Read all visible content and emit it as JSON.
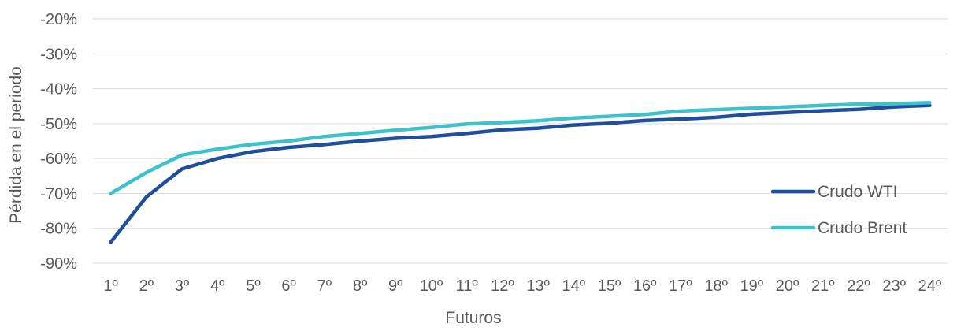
{
  "chart_data": {
    "type": "line",
    "categories": [
      "1º",
      "2º",
      "3º",
      "4º",
      "5º",
      "6º",
      "7º",
      "8º",
      "9º",
      "10º",
      "11º",
      "12º",
      "13º",
      "14º",
      "15º",
      "16º",
      "17º",
      "18º",
      "19º",
      "20º",
      "21º",
      "22º",
      "23º",
      "24º"
    ],
    "series": [
      {
        "name": "Crudo WTI",
        "color": "#1f4e9c",
        "values": [
          -84,
          -71,
          -63,
          -60,
          -58,
          -56.8,
          -56,
          -55,
          -54.2,
          -53.7,
          -52.8,
          -51.8,
          -51.3,
          -50.4,
          -49.9,
          -49.1,
          -48.7,
          -48.2,
          -47.3,
          -46.8,
          -46.3,
          -45.9,
          -45.2,
          -44.8
        ]
      },
      {
        "name": "Crudo Brent",
        "color": "#3fc1c9",
        "values": [
          -70,
          -64,
          -59,
          -57.3,
          -55.9,
          -55,
          -53.7,
          -52.8,
          -51.9,
          -51.1,
          -50.1,
          -49.7,
          -49.2,
          -48.4,
          -47.9,
          -47.4,
          -46.4,
          -46,
          -45.6,
          -45.2,
          -44.8,
          -44.4,
          -44.3,
          -44
        ]
      }
    ],
    "y_ticks": [
      "-20%",
      "-30%",
      "-40%",
      "-50%",
      "-60%",
      "-70%",
      "-80%",
      "-90%"
    ],
    "ylim": [
      -90,
      -20
    ],
    "xlabel": "Futuros",
    "ylabel": "Pérdida en el periodo",
    "grid": true,
    "legend_position": "right"
  }
}
